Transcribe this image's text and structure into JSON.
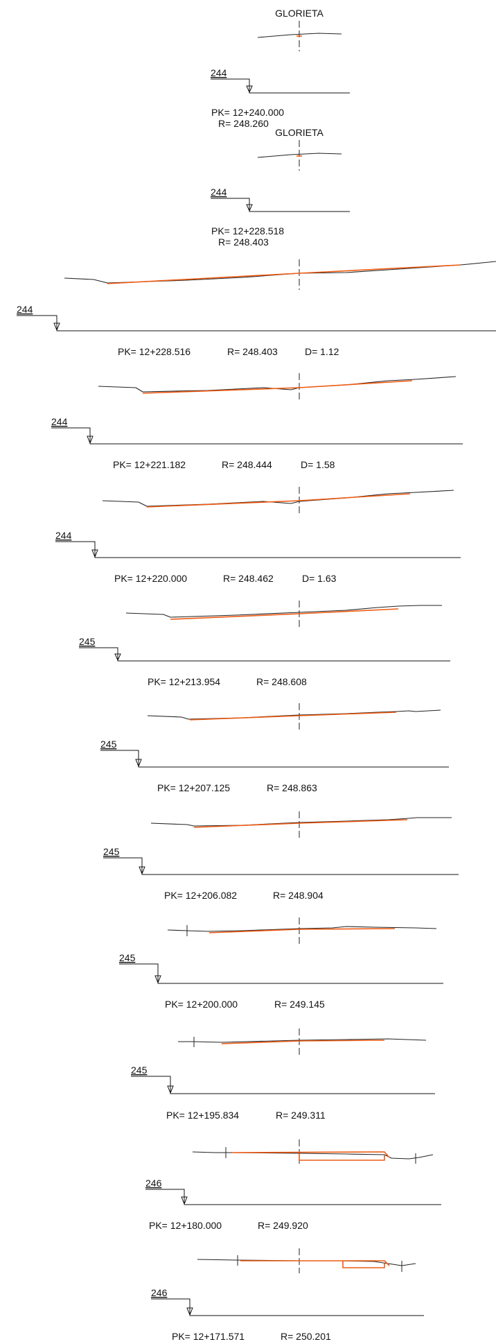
{
  "drawing": {
    "colors": {
      "terrain": "#222222",
      "design": "#ee5a12",
      "axis": "#222222",
      "datum": "#111111",
      "text": "#111111"
    },
    "sections": [
      {
        "id": "s1",
        "title": "GLORIETA",
        "datum": "244",
        "pk": "PK= 12+240.000",
        "r": "R= 248.260",
        "d": ""
      },
      {
        "id": "s2",
        "title": "GLORIETA",
        "datum": "244",
        "pk": "PK= 12+228.518",
        "r": "R= 248.403",
        "d": ""
      },
      {
        "id": "s3",
        "title": "",
        "datum": "244",
        "pk": "PK= 12+228.516",
        "r": "R= 248.403",
        "d": "D= 1.12"
      },
      {
        "id": "s4",
        "title": "",
        "datum": "244",
        "pk": "PK= 12+221.182",
        "r": "R= 248.444",
        "d": "D= 1.58"
      },
      {
        "id": "s5",
        "title": "",
        "datum": "244",
        "pk": "PK= 12+220.000",
        "r": "R= 248.462",
        "d": "D= 1.63"
      },
      {
        "id": "s6",
        "title": "",
        "datum": "245",
        "pk": "PK= 12+213.954",
        "r": "R= 248.608",
        "d": ""
      },
      {
        "id": "s7",
        "title": "",
        "datum": "245",
        "pk": "PK= 12+207.125",
        "r": "R= 248.863",
        "d": ""
      },
      {
        "id": "s8",
        "title": "",
        "datum": "245",
        "pk": "PK= 12+206.082",
        "r": "R= 248.904",
        "d": ""
      },
      {
        "id": "s9",
        "title": "",
        "datum": "245",
        "pk": "PK= 12+200.000",
        "r": "R= 249.145",
        "d": ""
      },
      {
        "id": "s10",
        "title": "",
        "datum": "245",
        "pk": "PK= 12+195.834",
        "r": "R= 249.311",
        "d": ""
      },
      {
        "id": "s11",
        "title": "",
        "datum": "246",
        "pk": "PK= 12+180.000",
        "r": "R= 249.920",
        "d": ""
      },
      {
        "id": "s12",
        "title": "",
        "datum": "246",
        "pk": "PK= 12+171.571",
        "r": "R= 250.201",
        "d": ""
      }
    ]
  }
}
